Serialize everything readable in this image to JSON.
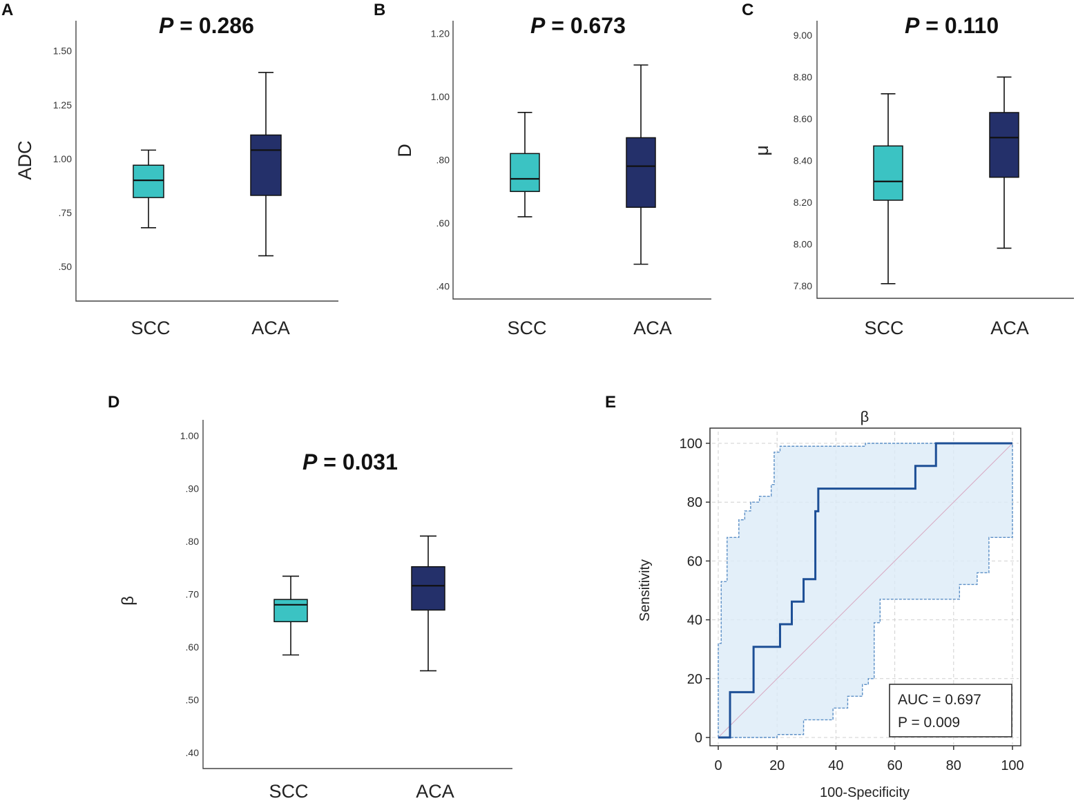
{
  "chart_data": [
    {
      "type": "box",
      "panel": "A",
      "title_p": "P",
      "title_rest": " = 0.286",
      "ylabel": "ADC",
      "ylim": [
        0.34,
        1.64
      ],
      "yticks": [
        {
          "v": 1.5,
          "label": "1.50"
        },
        {
          "v": 1.25,
          "label": "1.25"
        },
        {
          "v": 1.0,
          "label": "1.00"
        },
        {
          "v": 0.75,
          "label": ".75"
        },
        {
          "v": 0.5,
          "label": ".50"
        }
      ],
      "categories": [
        "SCC",
        "ACA"
      ],
      "boxes": [
        {
          "min": 0.68,
          "q1": 0.82,
          "median": 0.9,
          "q3": 0.97,
          "max": 1.04
        },
        {
          "min": 0.55,
          "q1": 0.83,
          "median": 1.04,
          "q3": 1.11,
          "max": 1.4
        }
      ]
    },
    {
      "type": "box",
      "panel": "B",
      "title_p": "P",
      "title_rest": " = 0.673",
      "ylabel": "D",
      "ylim": [
        0.36,
        1.24
      ],
      "yticks": [
        {
          "v": 1.2,
          "label": "1.20"
        },
        {
          "v": 1.0,
          "label": "1.00"
        },
        {
          "v": 0.8,
          "label": ".80"
        },
        {
          "v": 0.6,
          "label": ".60"
        },
        {
          "v": 0.4,
          "label": ".40"
        }
      ],
      "categories": [
        "SCC",
        "ACA"
      ],
      "boxes": [
        {
          "min": 0.62,
          "q1": 0.7,
          "median": 0.74,
          "q3": 0.82,
          "max": 0.95
        },
        {
          "min": 0.47,
          "q1": 0.65,
          "median": 0.78,
          "q3": 0.87,
          "max": 1.1
        }
      ]
    },
    {
      "type": "box",
      "panel": "C",
      "title_p": "P",
      "title_rest": " = 0.110",
      "ylabel": "μ",
      "ylim": [
        7.74,
        9.07
      ],
      "yticks": [
        {
          "v": 9.0,
          "label": "9.00"
        },
        {
          "v": 8.8,
          "label": "8.80"
        },
        {
          "v": 8.6,
          "label": "8.60"
        },
        {
          "v": 8.4,
          "label": "8.40"
        },
        {
          "v": 8.2,
          "label": "8.20"
        },
        {
          "v": 8.0,
          "label": "8.00"
        },
        {
          "v": 7.8,
          "label": "7.80"
        }
      ],
      "categories": [
        "SCC",
        "ACA"
      ],
      "boxes": [
        {
          "min": 7.81,
          "q1": 8.21,
          "median": 8.3,
          "q3": 8.47,
          "max": 8.72
        },
        {
          "min": 7.98,
          "q1": 8.32,
          "median": 8.51,
          "q3": 8.63,
          "max": 8.8
        }
      ]
    },
    {
      "type": "box",
      "panel": "D",
      "title_p": "P",
      "title_rest": " = 0.031",
      "ylabel": "β",
      "ylim": [
        0.37,
        1.03
      ],
      "yticks": [
        {
          "v": 1.0,
          "label": "1.00"
        },
        {
          "v": 0.9,
          "label": ".90"
        },
        {
          "v": 0.8,
          "label": ".80"
        },
        {
          "v": 0.7,
          "label": ".70"
        },
        {
          "v": 0.6,
          "label": ".60"
        },
        {
          "v": 0.5,
          "label": ".50"
        },
        {
          "v": 0.4,
          "label": ".40"
        }
      ],
      "categories": [
        "SCC",
        "ACA"
      ],
      "boxes": [
        {
          "min": 0.585,
          "q1": 0.648,
          "median": 0.68,
          "q3": 0.69,
          "max": 0.734
        },
        {
          "min": 0.555,
          "q1": 0.67,
          "median": 0.716,
          "q3": 0.752,
          "max": 0.81
        }
      ]
    },
    {
      "type": "line",
      "panel": "E",
      "title": "β",
      "xlabel": "100-Specificity",
      "ylabel": "Sensitivity",
      "xlim": [
        0,
        100
      ],
      "ylim": [
        0,
        100
      ],
      "xticks": [
        0,
        20,
        40,
        60,
        80,
        100
      ],
      "yticks": [
        0,
        20,
        40,
        60,
        80,
        100
      ],
      "grid": true,
      "annotation": [
        "AUC = 0.697",
        "P = 0.009"
      ],
      "series": [
        {
          "name": "ROC",
          "x": [
            0,
            4,
            4,
            12,
            12,
            21,
            21,
            25,
            25,
            29,
            29,
            33,
            33,
            34,
            34,
            36,
            36,
            67,
            67,
            74,
            74,
            100
          ],
          "y": [
            0,
            0,
            15.4,
            15.4,
            30.8,
            30.8,
            38.5,
            38.5,
            46.2,
            46.2,
            53.8,
            53.8,
            76.9,
            76.9,
            84.6,
            84.6,
            84.6,
            84.6,
            92.3,
            92.3,
            100,
            100
          ]
        },
        {
          "name": "Upper CI",
          "x": [
            0,
            0,
            1,
            1,
            3,
            3,
            7,
            7,
            9,
            9,
            11,
            11,
            14,
            14,
            18,
            18,
            19,
            19,
            21,
            21,
            37,
            37,
            50,
            50,
            100
          ],
          "y": [
            0,
            32,
            32,
            53,
            53,
            68,
            68,
            74,
            74,
            77,
            77,
            80,
            80,
            82,
            82,
            86,
            86,
            97,
            97,
            99,
            99,
            99,
            99,
            100,
            100
          ]
        },
        {
          "name": "Lower CI",
          "x": [
            0,
            20,
            20,
            29,
            29,
            39,
            39,
            44,
            44,
            49,
            49,
            51,
            51,
            53,
            53,
            55,
            55,
            82,
            82,
            88,
            88,
            92,
            92,
            100,
            100
          ],
          "y": [
            0,
            0,
            1,
            1,
            6,
            6,
            10,
            10,
            14,
            14,
            18,
            18,
            20,
            20,
            39,
            39,
            47,
            47,
            52,
            52,
            56,
            56,
            68,
            68,
            100
          ]
        },
        {
          "name": "Reference",
          "x": [
            0,
            100
          ],
          "y": [
            0,
            100
          ]
        }
      ]
    }
  ]
}
